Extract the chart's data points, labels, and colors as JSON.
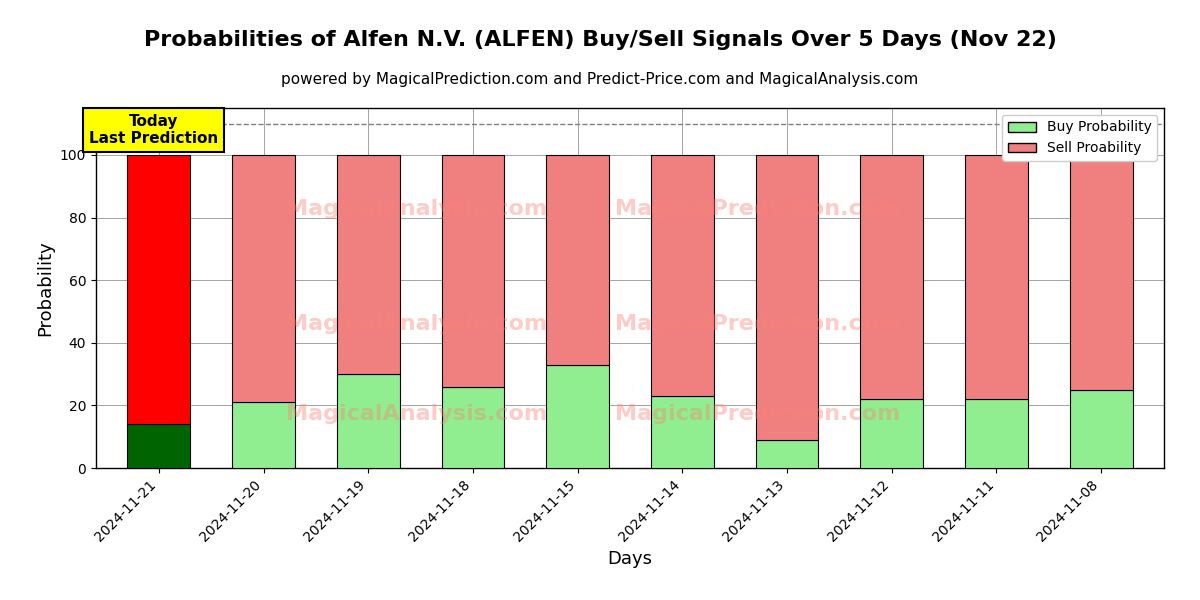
{
  "title": "Probabilities of Alfen N.V. (ALFEN) Buy/Sell Signals Over 5 Days (Nov 22)",
  "subtitle": "powered by MagicalPrediction.com and Predict-Price.com and MagicalAnalysis.com",
  "xlabel": "Days",
  "ylabel": "Probability",
  "categories": [
    "2024-11-21",
    "2024-11-20",
    "2024-11-19",
    "2024-11-18",
    "2024-11-15",
    "2024-11-14",
    "2024-11-13",
    "2024-11-12",
    "2024-11-11",
    "2024-11-08"
  ],
  "buy_values": [
    14,
    21,
    30,
    26,
    33,
    23,
    9,
    22,
    22,
    25
  ],
  "sell_values": [
    86,
    79,
    70,
    74,
    67,
    77,
    91,
    78,
    78,
    75
  ],
  "today_buy_color": "#006400",
  "today_sell_color": "#ff0000",
  "buy_color": "#90EE90",
  "sell_color": "#F08080",
  "today_label_bg": "#ffff00",
  "today_label_text": "Today\nLast Prediction",
  "legend_buy_label": "Buy Probability",
  "legend_sell_label": "Sell Proability",
  "watermark_text1": "MagicalAnalysis.com",
  "watermark_text2": "MagicalPrediction.com",
  "ylim": [
    0,
    115
  ],
  "dashed_line_y": 110,
  "bar_width": 0.6,
  "edgecolor": "black",
  "background_color": "#ffffff",
  "grid_color": "gray",
  "title_fontsize": 16,
  "subtitle_fontsize": 11,
  "axis_label_fontsize": 13
}
